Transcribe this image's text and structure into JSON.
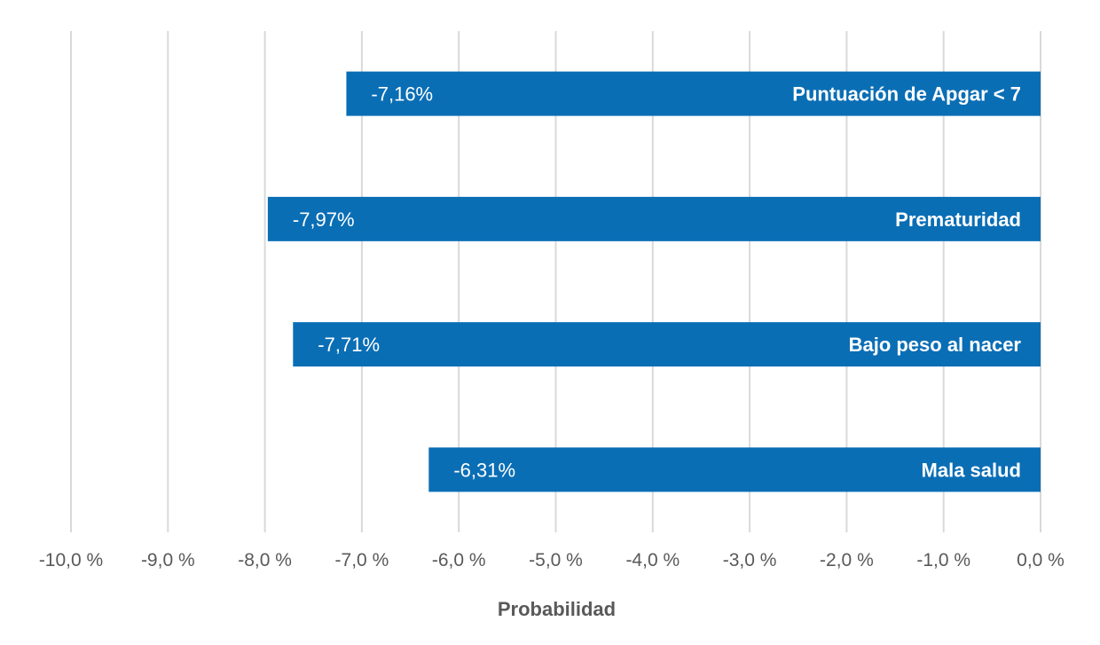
{
  "chart_data": {
    "type": "bar",
    "orientation": "horizontal",
    "categories": [
      "Puntuación de Apgar < 7",
      "Prematuridad",
      "Bajo peso al nacer",
      "Mala salud"
    ],
    "values": [
      -7.16,
      -7.97,
      -7.71,
      -6.31
    ],
    "data_labels": [
      "-7,16%",
      "-7,97%",
      "-7,71%",
      "-6,31%"
    ],
    "xlabel": "Probabilidad",
    "ylabel": "",
    "xlim": [
      -10,
      0
    ],
    "x_ticks": [
      -10,
      -9,
      -8,
      -7,
      -6,
      -5,
      -4,
      -3,
      -2,
      -1,
      0
    ],
    "x_tick_labels": [
      "-10,0 %",
      "-9,0 %",
      "-8,0 %",
      "-7,0 %",
      "-6,0 %",
      "-5,0 %",
      "-4,0 %",
      "-3,0 %",
      "-2,0 %",
      "-1,0 %",
      "0,0 %"
    ],
    "grid": true,
    "bar_color": "#0a6eb5",
    "grid_color": "#d9d9d9",
    "text_color": "#595959"
  }
}
